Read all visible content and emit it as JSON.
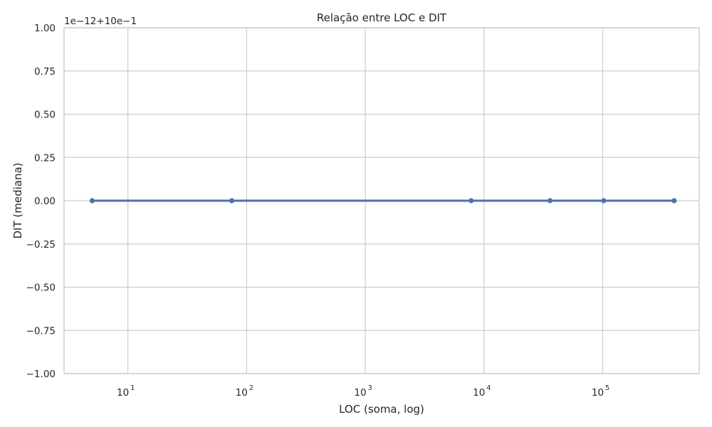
{
  "chart_data": {
    "type": "line",
    "title": "Relação entre LOC e DIT",
    "xlabel": "LOC (soma, log)",
    "ylabel": "DIT (mediana)",
    "x_scale": "log",
    "xlim": [
      2.9,
      650000
    ],
    "ylim": [
      -1.0,
      1.0
    ],
    "x_ticks": [
      10,
      100,
      1000,
      10000,
      100000
    ],
    "x_tick_labels": [
      {
        "base": "10",
        "exp": "1"
      },
      {
        "base": "10",
        "exp": "2"
      },
      {
        "base": "10",
        "exp": "3"
      },
      {
        "base": "10",
        "exp": "4"
      },
      {
        "base": "10",
        "exp": "5"
      }
    ],
    "y_ticks": [
      -1.0,
      -0.75,
      -0.5,
      -0.25,
      0.0,
      0.25,
      0.5,
      0.75,
      1.0
    ],
    "y_tick_labels": [
      "−1.00",
      "−0.75",
      "−0.50",
      "−0.25",
      "0.00",
      "0.25",
      "0.50",
      "0.75",
      "1.00"
    ],
    "y_offset_text": "1e−12+10e−1",
    "grid": true,
    "series": [
      {
        "color": "#4c72b0",
        "x": [
          5,
          75,
          7800,
          36000,
          102000,
          400000
        ],
        "y": [
          0,
          0,
          0,
          0,
          0,
          0
        ]
      }
    ]
  }
}
